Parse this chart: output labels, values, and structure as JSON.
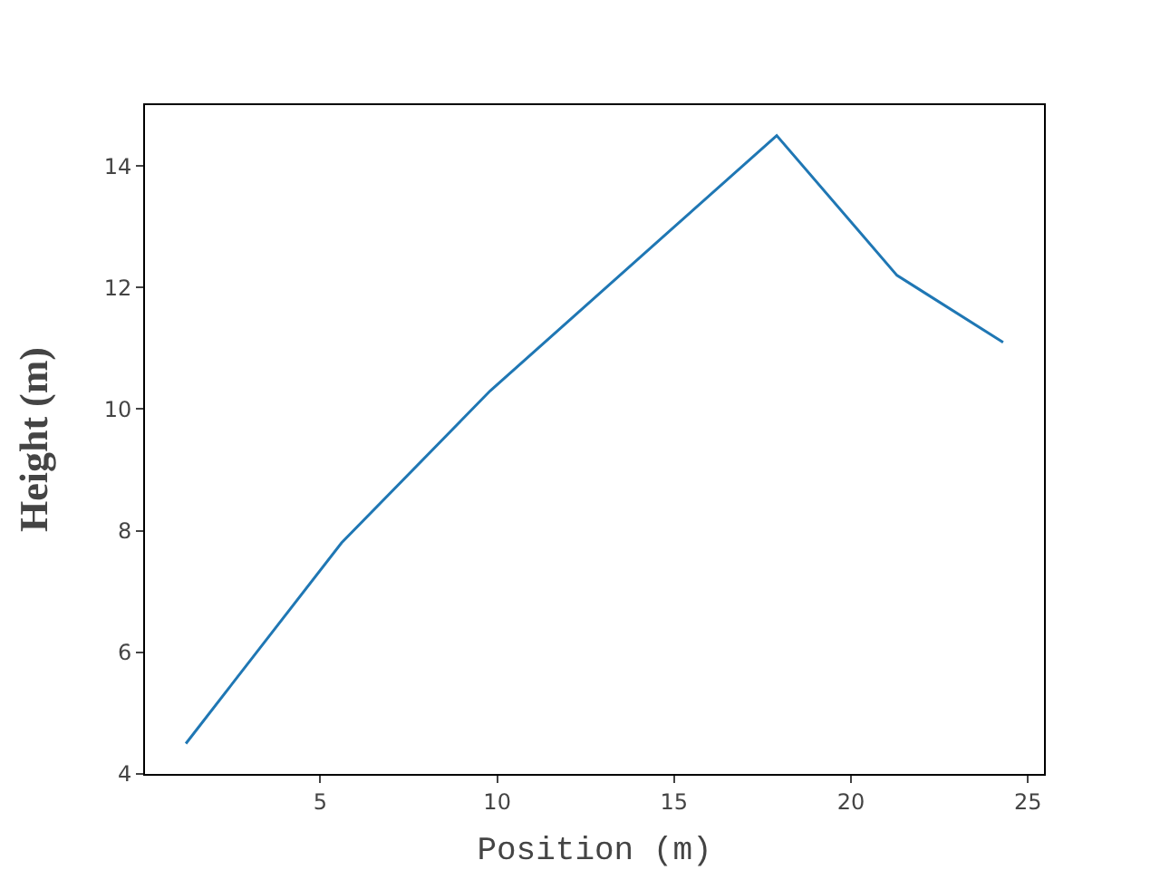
{
  "chart_data": {
    "type": "line",
    "xlabel": "Position (m)",
    "ylabel": "Height (m)",
    "x": [
      1.2,
      5.6,
      9.8,
      17.9,
      21.3,
      24.3
    ],
    "series": [
      {
        "color": "#1f77b4",
        "values": [
          4.5,
          7.8,
          10.3,
          14.5,
          12.2,
          11.1
        ]
      }
    ],
    "xlim": [
      0.045,
      25.455
    ],
    "xticks": [
      5,
      10,
      15,
      20,
      25
    ],
    "ylim": [
      4,
      15
    ],
    "yticks": [
      4,
      6,
      8,
      10,
      12,
      14
    ],
    "grid": false,
    "legend": false,
    "marker": "none",
    "line_style": "solid"
  }
}
